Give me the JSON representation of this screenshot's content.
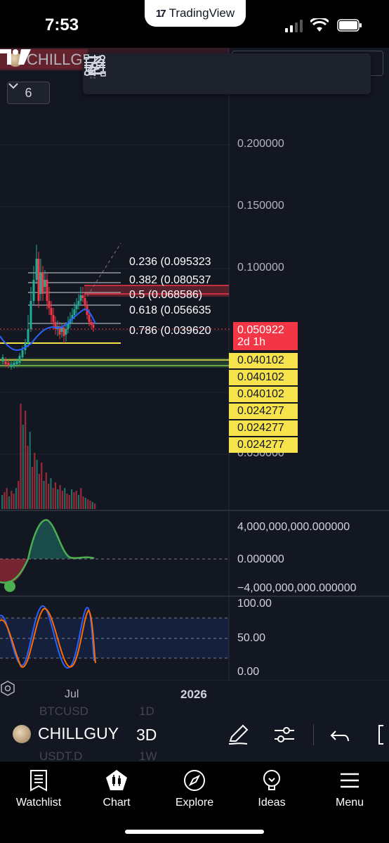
{
  "status_bar": {
    "time": "7:53",
    "app_pill": "TradingView"
  },
  "chart_header": {
    "symbol": "CHILLG",
    "indicators_count": "6"
  },
  "price_axis": [
    "0.200000",
    "0.150000",
    "0.100000",
    "0.050000"
  ],
  "fib_levels": [
    {
      "label": "0.236 (0.095323"
    },
    {
      "label": "0.382 (0.080537"
    },
    {
      "label": "0.5 (0.068586)"
    },
    {
      "label": "0.618 (0.056635"
    },
    {
      "label": "0.786 (0.039620"
    }
  ],
  "last_price": {
    "value": "0.050922",
    "countdown": "2d 1h"
  },
  "yellow_tags": [
    "0.040102",
    "0.040102",
    "0.040102",
    "0.024277",
    "0.024277",
    "0.024277"
  ],
  "oscillator1_axis": [
    "4,000,000,000.000000",
    "0.000000",
    "−4,000,000,000.000000"
  ],
  "oscillator2_axis": [
    "100.00",
    "50.00",
    "0.00"
  ],
  "time_axis": {
    "label1": "Jul",
    "label2": "2026"
  },
  "symbol_bar": {
    "symbol": "CHILLGUY",
    "interval": "3D",
    "ghost_items": [
      "BTCUSD",
      "1D",
      "USDT.D",
      "1W"
    ]
  },
  "bottom_nav": [
    {
      "label": "Watchlist",
      "icon": "watchlist-icon"
    },
    {
      "label": "Chart",
      "icon": "chart-icon"
    },
    {
      "label": "Explore",
      "icon": "compass-icon"
    },
    {
      "label": "Ideas",
      "icon": "lightbulb-icon"
    },
    {
      "label": "Menu",
      "icon": "hamburger-icon"
    }
  ],
  "colors": {
    "bg": "#131722",
    "up": "#22ab94",
    "down": "#f23645",
    "accent_yellow": "#f7e34b",
    "ma_blue": "#2962ff"
  }
}
